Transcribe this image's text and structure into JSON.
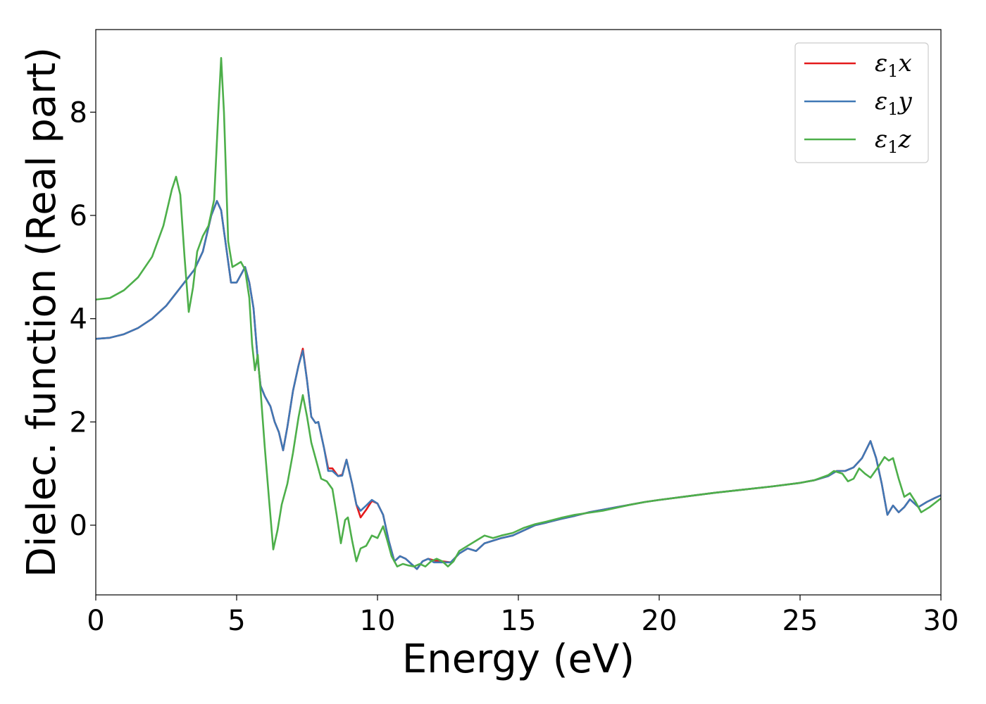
{
  "chart_data": {
    "type": "line",
    "xlabel": "Energy (eV)",
    "ylabel": "Dielec. function (Real part)",
    "xlim": [
      0,
      30
    ],
    "ylim": [
      -1.35,
      9.6
    ],
    "xticks": [
      0,
      5,
      10,
      15,
      20,
      25,
      30
    ],
    "yticks": [
      0,
      2,
      4,
      6,
      8
    ],
    "grid": false,
    "legend_position": "top-right",
    "series": [
      {
        "name": "ε1x",
        "legend_main": "ε",
        "legend_sub": "1",
        "legend_tail": "x",
        "color": "#e41a1c",
        "points": [
          [
            0,
            3.61
          ],
          [
            0.5,
            3.63
          ],
          [
            1,
            3.7
          ],
          [
            1.5,
            3.82
          ],
          [
            2,
            4.0
          ],
          [
            2.5,
            4.25
          ],
          [
            3,
            4.6
          ],
          [
            3.5,
            4.95
          ],
          [
            3.8,
            5.3
          ],
          [
            4.1,
            6.0
          ],
          [
            4.3,
            6.28
          ],
          [
            4.45,
            6.1
          ],
          [
            4.6,
            5.5
          ],
          [
            4.8,
            4.7
          ],
          [
            5.0,
            4.7
          ],
          [
            5.2,
            4.9
          ],
          [
            5.3,
            5.0
          ],
          [
            5.45,
            4.7
          ],
          [
            5.6,
            4.2
          ],
          [
            5.75,
            3.2
          ],
          [
            5.85,
            2.7
          ],
          [
            6.0,
            2.5
          ],
          [
            6.2,
            2.3
          ],
          [
            6.35,
            2.0
          ],
          [
            6.5,
            1.8
          ],
          [
            6.65,
            1.45
          ],
          [
            6.8,
            1.9
          ],
          [
            7.0,
            2.6
          ],
          [
            7.2,
            3.1
          ],
          [
            7.35,
            3.42
          ],
          [
            7.5,
            2.8
          ],
          [
            7.65,
            2.1
          ],
          [
            7.8,
            1.98
          ],
          [
            7.9,
            2.0
          ],
          [
            8.1,
            1.5
          ],
          [
            8.25,
            1.1
          ],
          [
            8.4,
            1.1
          ],
          [
            8.6,
            0.95
          ],
          [
            8.75,
            0.98
          ],
          [
            8.9,
            1.27
          ],
          [
            9.1,
            0.8
          ],
          [
            9.25,
            0.4
          ],
          [
            9.4,
            0.15
          ],
          [
            9.6,
            0.3
          ],
          [
            9.8,
            0.47
          ],
          [
            10.0,
            0.42
          ],
          [
            10.2,
            0.2
          ],
          [
            10.4,
            -0.3
          ],
          [
            10.6,
            -0.7
          ],
          [
            10.8,
            -0.6
          ],
          [
            11.0,
            -0.65
          ],
          [
            11.2,
            -0.75
          ],
          [
            11.4,
            -0.85
          ],
          [
            11.6,
            -0.7
          ],
          [
            11.8,
            -0.65
          ],
          [
            12.0,
            -0.68
          ],
          [
            12.3,
            -0.7
          ],
          [
            12.6,
            -0.72
          ],
          [
            12.9,
            -0.55
          ],
          [
            13.2,
            -0.45
          ],
          [
            13.5,
            -0.5
          ],
          [
            13.8,
            -0.35
          ],
          [
            14.1,
            -0.3
          ],
          [
            14.4,
            -0.25
          ],
          [
            14.8,
            -0.2
          ],
          [
            15.2,
            -0.1
          ],
          [
            15.6,
            0.0
          ],
          [
            16.0,
            0.05
          ],
          [
            16.5,
            0.12
          ],
          [
            17.0,
            0.18
          ],
          [
            17.5,
            0.25
          ],
          [
            18.0,
            0.3
          ],
          [
            18.5,
            0.35
          ],
          [
            19.0,
            0.4
          ],
          [
            19.5,
            0.45
          ],
          [
            20.0,
            0.49
          ],
          [
            21.0,
            0.56
          ],
          [
            22.0,
            0.63
          ],
          [
            23.0,
            0.69
          ],
          [
            24.0,
            0.75
          ],
          [
            25.0,
            0.82
          ],
          [
            25.5,
            0.87
          ],
          [
            26.0,
            0.95
          ],
          [
            26.3,
            1.05
          ],
          [
            26.6,
            1.05
          ],
          [
            26.9,
            1.12
          ],
          [
            27.2,
            1.3
          ],
          [
            27.5,
            1.63
          ],
          [
            27.7,
            1.3
          ],
          [
            27.9,
            0.8
          ],
          [
            28.1,
            0.2
          ],
          [
            28.3,
            0.38
          ],
          [
            28.5,
            0.25
          ],
          [
            28.7,
            0.35
          ],
          [
            28.9,
            0.5
          ],
          [
            29.2,
            0.35
          ],
          [
            29.5,
            0.45
          ],
          [
            29.8,
            0.53
          ],
          [
            30,
            0.58
          ]
        ]
      },
      {
        "name": "ε1y",
        "legend_main": "ε",
        "legend_sub": "1",
        "legend_tail": "y",
        "color": "#3f78b5",
        "points": [
          [
            0,
            3.61
          ],
          [
            0.5,
            3.63
          ],
          [
            1,
            3.7
          ],
          [
            1.5,
            3.82
          ],
          [
            2,
            4.0
          ],
          [
            2.5,
            4.25
          ],
          [
            3,
            4.6
          ],
          [
            3.5,
            4.95
          ],
          [
            3.8,
            5.3
          ],
          [
            4.1,
            6.0
          ],
          [
            4.3,
            6.28
          ],
          [
            4.45,
            6.1
          ],
          [
            4.6,
            5.5
          ],
          [
            4.8,
            4.7
          ],
          [
            5.0,
            4.7
          ],
          [
            5.2,
            4.9
          ],
          [
            5.3,
            5.0
          ],
          [
            5.45,
            4.7
          ],
          [
            5.6,
            4.2
          ],
          [
            5.75,
            3.2
          ],
          [
            5.85,
            2.7
          ],
          [
            6.0,
            2.5
          ],
          [
            6.2,
            2.3
          ],
          [
            6.35,
            2.0
          ],
          [
            6.5,
            1.8
          ],
          [
            6.65,
            1.45
          ],
          [
            6.8,
            1.9
          ],
          [
            7.0,
            2.6
          ],
          [
            7.2,
            3.1
          ],
          [
            7.35,
            3.38
          ],
          [
            7.5,
            2.8
          ],
          [
            7.65,
            2.1
          ],
          [
            7.8,
            1.98
          ],
          [
            7.9,
            2.0
          ],
          [
            8.1,
            1.5
          ],
          [
            8.25,
            1.05
          ],
          [
            8.4,
            1.05
          ],
          [
            8.6,
            0.95
          ],
          [
            8.75,
            0.96
          ],
          [
            8.9,
            1.27
          ],
          [
            9.1,
            0.8
          ],
          [
            9.25,
            0.4
          ],
          [
            9.4,
            0.28
          ],
          [
            9.6,
            0.38
          ],
          [
            9.8,
            0.49
          ],
          [
            10.0,
            0.42
          ],
          [
            10.2,
            0.2
          ],
          [
            10.4,
            -0.3
          ],
          [
            10.6,
            -0.7
          ],
          [
            10.8,
            -0.6
          ],
          [
            11.0,
            -0.65
          ],
          [
            11.2,
            -0.75
          ],
          [
            11.4,
            -0.85
          ],
          [
            11.6,
            -0.7
          ],
          [
            11.8,
            -0.65
          ],
          [
            12.0,
            -0.72
          ],
          [
            12.3,
            -0.72
          ],
          [
            12.6,
            -0.72
          ],
          [
            12.9,
            -0.55
          ],
          [
            13.2,
            -0.45
          ],
          [
            13.5,
            -0.5
          ],
          [
            13.8,
            -0.35
          ],
          [
            14.1,
            -0.3
          ],
          [
            14.4,
            -0.25
          ],
          [
            14.8,
            -0.2
          ],
          [
            15.2,
            -0.1
          ],
          [
            15.6,
            0.0
          ],
          [
            16.0,
            0.05
          ],
          [
            16.5,
            0.12
          ],
          [
            17.0,
            0.18
          ],
          [
            17.5,
            0.25
          ],
          [
            18.0,
            0.3
          ],
          [
            18.5,
            0.35
          ],
          [
            19.0,
            0.4
          ],
          [
            19.5,
            0.45
          ],
          [
            20.0,
            0.49
          ],
          [
            21.0,
            0.56
          ],
          [
            22.0,
            0.63
          ],
          [
            23.0,
            0.69
          ],
          [
            24.0,
            0.75
          ],
          [
            25.0,
            0.82
          ],
          [
            25.5,
            0.87
          ],
          [
            26.0,
            0.95
          ],
          [
            26.3,
            1.05
          ],
          [
            26.6,
            1.05
          ],
          [
            26.9,
            1.12
          ],
          [
            27.2,
            1.3
          ],
          [
            27.5,
            1.63
          ],
          [
            27.7,
            1.3
          ],
          [
            27.9,
            0.8
          ],
          [
            28.1,
            0.2
          ],
          [
            28.3,
            0.38
          ],
          [
            28.5,
            0.25
          ],
          [
            28.7,
            0.35
          ],
          [
            28.9,
            0.5
          ],
          [
            29.2,
            0.35
          ],
          [
            29.5,
            0.45
          ],
          [
            29.8,
            0.53
          ],
          [
            30,
            0.58
          ]
        ]
      },
      {
        "name": "ε1z",
        "legend_main": "ε",
        "legend_sub": "1",
        "legend_tail": "z",
        "color": "#4daf4a",
        "points": [
          [
            0,
            4.37
          ],
          [
            0.5,
            4.4
          ],
          [
            1,
            4.55
          ],
          [
            1.5,
            4.8
          ],
          [
            2,
            5.2
          ],
          [
            2.4,
            5.8
          ],
          [
            2.7,
            6.5
          ],
          [
            2.85,
            6.75
          ],
          [
            3.0,
            6.4
          ],
          [
            3.15,
            5.2
          ],
          [
            3.3,
            4.13
          ],
          [
            3.45,
            4.6
          ],
          [
            3.6,
            5.3
          ],
          [
            3.8,
            5.6
          ],
          [
            4.0,
            5.8
          ],
          [
            4.2,
            6.3
          ],
          [
            4.35,
            8.0
          ],
          [
            4.45,
            9.05
          ],
          [
            4.55,
            8.0
          ],
          [
            4.7,
            5.5
          ],
          [
            4.85,
            5.0
          ],
          [
            5.0,
            5.05
          ],
          [
            5.15,
            5.1
          ],
          [
            5.3,
            4.95
          ],
          [
            5.45,
            4.4
          ],
          [
            5.55,
            3.5
          ],
          [
            5.65,
            3.0
          ],
          [
            5.75,
            3.3
          ],
          [
            5.85,
            2.6
          ],
          [
            6.0,
            1.5
          ],
          [
            6.15,
            0.5
          ],
          [
            6.3,
            -0.47
          ],
          [
            6.45,
            -0.1
          ],
          [
            6.6,
            0.4
          ],
          [
            6.8,
            0.8
          ],
          [
            7.0,
            1.4
          ],
          [
            7.2,
            2.1
          ],
          [
            7.35,
            2.52
          ],
          [
            7.5,
            2.1
          ],
          [
            7.65,
            1.6
          ],
          [
            7.85,
            1.2
          ],
          [
            8.0,
            0.9
          ],
          [
            8.2,
            0.85
          ],
          [
            8.4,
            0.7
          ],
          [
            8.55,
            0.2
          ],
          [
            8.7,
            -0.35
          ],
          [
            8.85,
            0.1
          ],
          [
            8.95,
            0.15
          ],
          [
            9.1,
            -0.3
          ],
          [
            9.25,
            -0.7
          ],
          [
            9.4,
            -0.45
          ],
          [
            9.6,
            -0.4
          ],
          [
            9.8,
            -0.2
          ],
          [
            10.0,
            -0.25
          ],
          [
            10.2,
            -0.02
          ],
          [
            10.35,
            -0.3
          ],
          [
            10.5,
            -0.6
          ],
          [
            10.7,
            -0.8
          ],
          [
            10.9,
            -0.75
          ],
          [
            11.1,
            -0.78
          ],
          [
            11.3,
            -0.8
          ],
          [
            11.5,
            -0.75
          ],
          [
            11.7,
            -0.8
          ],
          [
            11.9,
            -0.7
          ],
          [
            12.1,
            -0.65
          ],
          [
            12.3,
            -0.7
          ],
          [
            12.5,
            -0.8
          ],
          [
            12.7,
            -0.7
          ],
          [
            12.9,
            -0.5
          ],
          [
            13.2,
            -0.4
          ],
          [
            13.5,
            -0.3
          ],
          [
            13.8,
            -0.2
          ],
          [
            14.1,
            -0.25
          ],
          [
            14.4,
            -0.2
          ],
          [
            14.8,
            -0.15
          ],
          [
            15.2,
            -0.05
          ],
          [
            15.6,
            0.02
          ],
          [
            16.0,
            0.07
          ],
          [
            16.5,
            0.14
          ],
          [
            17.0,
            0.2
          ],
          [
            17.5,
            0.24
          ],
          [
            18.0,
            0.28
          ],
          [
            18.5,
            0.34
          ],
          [
            19.0,
            0.4
          ],
          [
            19.5,
            0.45
          ],
          [
            20.0,
            0.49
          ],
          [
            21.0,
            0.56
          ],
          [
            22.0,
            0.63
          ],
          [
            23.0,
            0.69
          ],
          [
            24.0,
            0.75
          ],
          [
            25.0,
            0.82
          ],
          [
            25.5,
            0.87
          ],
          [
            26.0,
            0.97
          ],
          [
            26.2,
            1.05
          ],
          [
            26.5,
            1.0
          ],
          [
            26.7,
            0.85
          ],
          [
            26.9,
            0.9
          ],
          [
            27.1,
            1.1
          ],
          [
            27.3,
            1.0
          ],
          [
            27.5,
            0.92
          ],
          [
            27.8,
            1.15
          ],
          [
            28.0,
            1.32
          ],
          [
            28.15,
            1.25
          ],
          [
            28.3,
            1.3
          ],
          [
            28.5,
            0.9
          ],
          [
            28.7,
            0.55
          ],
          [
            28.9,
            0.62
          ],
          [
            29.1,
            0.45
          ],
          [
            29.3,
            0.25
          ],
          [
            29.6,
            0.35
          ],
          [
            30,
            0.52
          ]
        ]
      }
    ]
  }
}
